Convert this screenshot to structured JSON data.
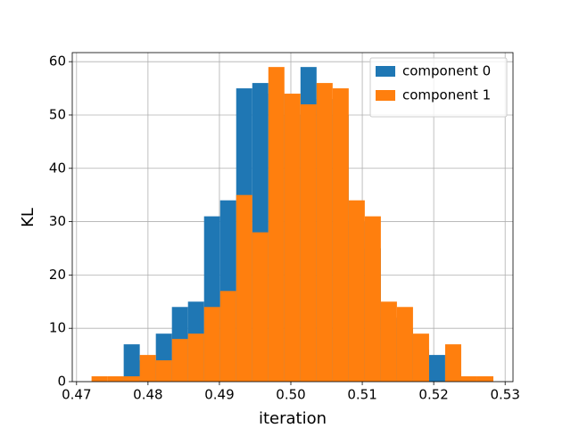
{
  "chart_data": {
    "type": "histogram",
    "x_label": "iteration",
    "y_label": "KL",
    "bins": [
      0.4721,
      0.47435,
      0.4766,
      0.47885,
      0.4811,
      0.48335,
      0.4856,
      0.48785,
      0.4901,
      0.49235,
      0.4946,
      0.49685,
      0.4991,
      0.50135,
      0.5036,
      0.50585,
      0.5081,
      0.51035,
      0.5126,
      0.51485,
      0.5171,
      0.51935,
      0.5216,
      0.52385,
      0.5261,
      0.52835
    ],
    "series": [
      {
        "name": "component 0",
        "color": "#1f77b4",
        "values": [
          0,
          0,
          7,
          4,
          9,
          14,
          15,
          31,
          34,
          55,
          56,
          54,
          50,
          59,
          53,
          50,
          30,
          25,
          12,
          10,
          6,
          5,
          2,
          0,
          0
        ]
      },
      {
        "name": "component 1",
        "color": "#ff7f0e",
        "values": [
          1,
          1,
          1,
          5,
          4,
          8,
          9,
          14,
          17,
          35,
          28,
          59,
          54,
          52,
          56,
          55,
          34,
          31,
          15,
          14,
          9,
          0,
          7,
          1,
          1
        ]
      }
    ],
    "xlim": [
      0.4694,
      0.5311
    ],
    "ylim": [
      0,
      61.7
    ],
    "xticks": [
      0.47,
      0.48,
      0.49,
      {
        "value": 0.5,
        "label": "0.50"
      },
      0.51,
      0.52,
      0.53
    ],
    "yticks": [
      0,
      10,
      20,
      30,
      40,
      50,
      60
    ],
    "grid": true,
    "legend": "upper right"
  }
}
